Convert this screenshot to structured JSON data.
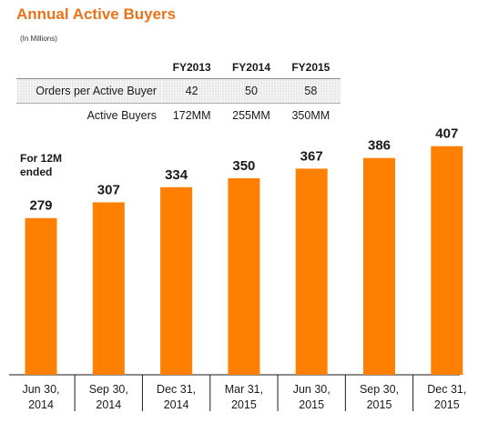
{
  "header": {
    "title": "Annual Active Buyers",
    "subtitle": "(In Millions)"
  },
  "metrics_table": {
    "columns": [
      "FY2013",
      "FY2014",
      "FY2015"
    ],
    "rows": [
      {
        "label": "Orders per Active Buyer",
        "values": [
          "42",
          "50",
          "58"
        ]
      },
      {
        "label": "Active Buyers",
        "values": [
          "172MM",
          "255MM",
          "350MM"
        ]
      }
    ]
  },
  "chart_note": "For 12M\nended",
  "chart_data": {
    "type": "bar",
    "categories": [
      [
        "Jun 30,",
        "2014"
      ],
      [
        "Sep 30,",
        "2014"
      ],
      [
        "Dec 31,",
        "2014"
      ],
      [
        "Mar 31,",
        "2015"
      ],
      [
        "Jun 30,",
        "2015"
      ],
      [
        "Sep 30,",
        "2015"
      ],
      [
        "Dec 31,",
        "2015"
      ]
    ],
    "values": [
      279,
      307,
      334,
      350,
      367,
      386,
      407
    ],
    "title": "",
    "xlabel": "",
    "ylabel": "",
    "grid": false,
    "legend": "none",
    "bar_color": "#ff7f00"
  }
}
